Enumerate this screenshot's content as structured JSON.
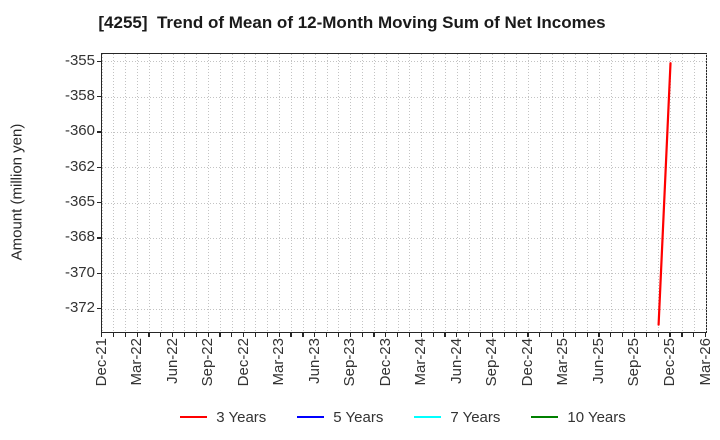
{
  "chart_data": {
    "type": "line",
    "title": "[4255]  Trend of Mean of 12-Month Moving Sum of Net Incomes",
    "ylabel": "Amount (million yen)",
    "xlabel": "",
    "grid": true,
    "legend_position": "bottom",
    "x_axis": {
      "unit": "month",
      "start": "Dec-21",
      "end": "Mar-26",
      "total_months": 51,
      "months_per_major_tick": 3,
      "minor_grid": "monthly",
      "tick_labels": [
        "Dec-21",
        "Mar-22",
        "Jun-22",
        "Sep-22",
        "Dec-22",
        "Mar-23",
        "Jun-23",
        "Sep-23",
        "Dec-23",
        "Mar-24",
        "Jun-24",
        "Sep-24",
        "Dec-24",
        "Mar-25",
        "Jun-25",
        "Sep-25",
        "Dec-25",
        "Mar-26"
      ]
    },
    "y_axis": {
      "ylim": [
        -374.12,
        -354.45
      ],
      "ticks": [
        {
          "value": -355.0,
          "label": "-355"
        },
        {
          "value": -357.5,
          "label": "-358"
        },
        {
          "value": -360.0,
          "label": "-360"
        },
        {
          "value": -362.5,
          "label": "-362"
        },
        {
          "value": -365.0,
          "label": "-365"
        },
        {
          "value": -367.5,
          "label": "-368"
        },
        {
          "value": -370.0,
          "label": "-370"
        },
        {
          "value": -372.5,
          "label": "-372"
        }
      ]
    },
    "series": [
      {
        "name": "3 Years",
        "color": "#ff0000",
        "points": [
          {
            "month": "Nov-25",
            "value": -373.6
          },
          {
            "month": "Dec-25",
            "value": -355.1
          }
        ]
      },
      {
        "name": "5 Years",
        "color": "#0000ff",
        "points": []
      },
      {
        "name": "7 Years",
        "color": "#00ffff",
        "points": []
      },
      {
        "name": "10 Years",
        "color": "#008000",
        "points": []
      }
    ],
    "colors": {
      "axis_border": "#262626",
      "grid": "#c3c3c3",
      "tick_text": "#333333",
      "title_text": "#1a1a1a"
    }
  }
}
